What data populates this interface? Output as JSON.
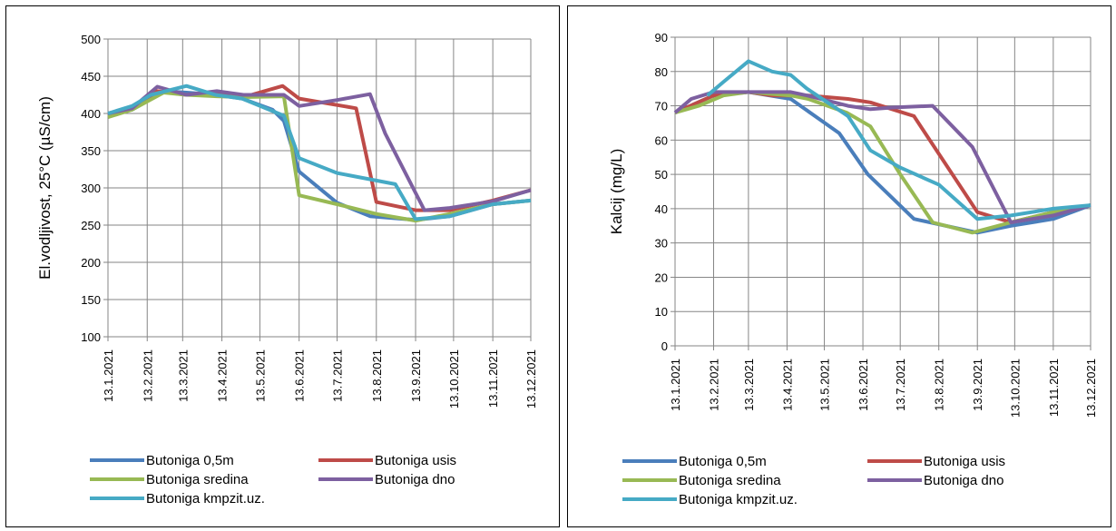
{
  "chart_data": [
    {
      "type": "line",
      "ylabel": "El.vodljivost, 25°C  (µS/cm)",
      "ylim": [
        100,
        500
      ],
      "yticks": [
        100,
        150,
        200,
        250,
        300,
        350,
        400,
        450,
        500
      ],
      "xlim": [
        "13.1.2021",
        "13.12.2021"
      ],
      "xticks": [
        "13.1.2021",
        "13.2.2021",
        "13.3.2021",
        "13.4.2021",
        "13.5.2021",
        "13.6.2021",
        "13.7.2021",
        "13.8.2021",
        "13.9.2021",
        "13.10.2021",
        "13.11.2021",
        "13.12.2021"
      ],
      "grid": true,
      "legend_position": "bottom",
      "series": [
        {
          "name": "Butoniga 0,5m",
          "color": "#4a7ebb",
          "x": [
            "13.1.2021",
            "1.2.2021",
            "26.2.2021",
            "16.3.2021",
            "9.4.2021",
            "29.4.2021",
            "23.5.2021",
            "1.6.2021",
            "13.6.2021",
            "13.7.2021",
            "8.8.2021",
            "13.9.2021",
            "10.10.2021",
            "13.11.2021",
            "13.12.2021"
          ],
          "y": [
            400,
            405,
            430,
            428,
            425,
            420,
            405,
            390,
            322,
            280,
            262,
            257,
            262,
            278,
            283
          ]
        },
        {
          "name": "Butoniga usis",
          "color": "#be4b48",
          "x": [
            "13.1.2021",
            "1.2.2021",
            "21.2.2021",
            "16.3.2021",
            "8.4.2021",
            "30.4.2021",
            "31.5.2021",
            "13.6.2021",
            "28.7.2021",
            "13.8.2021",
            "13.9.2021",
            "10.10.2021",
            "13.11.2021",
            "13.12.2021"
          ],
          "y": [
            400,
            407,
            430,
            425,
            428,
            422,
            437,
            420,
            407,
            281,
            270,
            270,
            283,
            297
          ]
        },
        {
          "name": "Butoniga sredina",
          "color": "#98b954",
          "x": [
            "13.1.2021",
            "1.2.2021",
            "26.2.2021",
            "16.3.2021",
            "9.4.2021",
            "30.4.2021",
            "1.6.2021",
            "13.6.2021",
            "13.7.2021",
            "13.8.2021",
            "13.9.2021",
            "10.10.2021",
            "13.11.2021",
            "13.12.2021"
          ],
          "y": [
            395,
            405,
            428,
            425,
            423,
            422,
            423,
            290,
            278,
            265,
            256,
            265,
            278,
            283
          ]
        },
        {
          "name": "Butoniga dno",
          "color": "#7d60a0",
          "x": [
            "13.1.2021",
            "1.2.2021",
            "21.2.2021",
            "16.3.2021",
            "9.4.2021",
            "30.4.2021",
            "1.6.2021",
            "13.6.2021",
            "13.7.2021",
            "8.8.2021",
            "20.8.2021",
            "20.9.2021",
            "10.10.2021",
            "13.11.2021",
            "13.12.2021"
          ],
          "y": [
            400,
            407,
            436,
            425,
            430,
            425,
            425,
            410,
            418,
            426,
            373,
            270,
            273,
            282,
            297
          ]
        },
        {
          "name": "Butoniga kmpzit.uz.",
          "color": "#46aac5",
          "x": [
            "13.1.2021",
            "1.2.2021",
            "16.2.2021",
            "16.3.2021",
            "8.4.2021",
            "29.4.2021",
            "1.6.2021",
            "13.6.2021",
            "13.7.2021",
            "28.8.2021",
            "13.9.2021",
            "10.10.2021",
            "13.11.2021",
            "13.12.2021"
          ],
          "y": [
            400,
            410,
            425,
            437,
            425,
            420,
            397,
            340,
            320,
            305,
            258,
            262,
            278,
            283
          ]
        }
      ]
    },
    {
      "type": "line",
      "ylabel": "Kalcij (mg/L)",
      "ylim": [
        0,
        90
      ],
      "yticks": [
        0,
        10,
        20,
        30,
        40,
        50,
        60,
        70,
        80,
        90
      ],
      "xlim": [
        "13.1.2021",
        "13.12.2021"
      ],
      "xticks": [
        "13.1.2021",
        "13.2.2021",
        "13.3.2021",
        "13.4.2021",
        "13.5.2021",
        "13.6.2021",
        "13.7.2021",
        "13.8.2021",
        "13.9.2021",
        "13.10.2021",
        "13.11.2021",
        "13.12.2021"
      ],
      "grid": true,
      "legend_position": "bottom",
      "series": [
        {
          "name": "Butoniga 0,5m",
          "color": "#4a7ebb",
          "x": [
            "13.1.2021",
            "13.2.2021",
            "13.3.2021",
            "16.4.2021",
            "25.5.2021",
            "17.6.2021",
            "24.7.2021",
            "13.9.2021",
            "10.10.2021",
            "13.11.2021",
            "13.12.2021"
          ],
          "y": [
            68,
            73,
            74,
            72,
            62,
            50,
            37,
            33,
            35,
            37,
            41
          ]
        },
        {
          "name": "Butoniga usis",
          "color": "#be4b48",
          "x": [
            "13.1.2021",
            "13.2.2021",
            "13.3.2021",
            "1.4.2021",
            "30.4.2021",
            "1.6.2021",
            "19.6.2021",
            "24.7.2021",
            "13.9.2021",
            "10.10.2021",
            "13.11.2021",
            "13.12.2021"
          ],
          "y": [
            68,
            73,
            74,
            73,
            73,
            72,
            71,
            67,
            39,
            36,
            39,
            41
          ]
        },
        {
          "name": "Butoniga sredina",
          "color": "#98b954",
          "x": [
            "13.1.2021",
            "1.2.2021",
            "21.2.2021",
            "13.3.2021",
            "16.4.2021",
            "30.4.2021",
            "31.5.2021",
            "19.6.2021",
            "13.7.2021",
            "8.8.2021",
            "9.9.2021",
            "10.10.2021",
            "13.11.2021",
            "13.12.2021"
          ],
          "y": [
            68,
            70,
            73,
            74,
            73,
            72,
            68,
            64,
            50,
            36,
            33,
            36,
            39,
            41
          ]
        },
        {
          "name": "Butoniga dno",
          "color": "#7d60a0",
          "x": [
            "13.1.2021",
            "26.1.2021",
            "13.2.2021",
            "13.3.2021",
            "16.4.2021",
            "29.4.2021",
            "1.6.2021",
            "19.6.2021",
            "8.7.2021",
            "8.8.2021",
            "9.9.2021",
            "10.10.2021",
            "13.11.2021",
            "13.12.2021"
          ],
          "y": [
            68,
            72,
            74,
            74,
            74,
            73,
            70,
            69,
            69.5,
            70,
            58,
            36,
            38,
            41
          ]
        },
        {
          "name": "Butoniga kmpzit.uz.",
          "color": "#46aac5",
          "x": [
            "8.2.2021",
            "21.2.2021",
            "13.3.2021",
            "1.4.2021",
            "16.4.2021",
            "29.4.2021",
            "1.6.2021",
            "19.6.2021",
            "13.7.2021",
            "13.8.2021",
            "13.9.2021",
            "10.10.2021",
            "13.11.2021",
            "13.12.2021"
          ],
          "y": [
            73,
            77,
            83,
            80,
            79,
            75,
            67,
            57,
            52,
            47,
            37,
            38,
            40,
            41
          ]
        }
      ]
    }
  ]
}
